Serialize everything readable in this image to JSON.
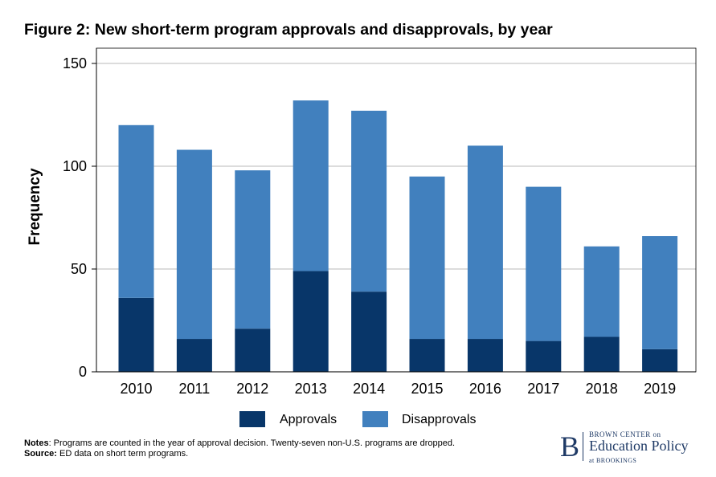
{
  "chart_data": {
    "type": "bar",
    "stacked": true,
    "title": "Figure 2: New short-term program approvals and disapprovals, by year",
    "xlabel": "",
    "ylabel": "Frequency",
    "ylim": [
      0,
      150
    ],
    "yticks": [
      0,
      50,
      100,
      150
    ],
    "categories": [
      "2010",
      "2011",
      "2012",
      "2013",
      "2014",
      "2015",
      "2016",
      "2017",
      "2018",
      "2019"
    ],
    "series": [
      {
        "name": "Approvals",
        "color": "#083669",
        "values": [
          36,
          16,
          21,
          49,
          39,
          16,
          16,
          15,
          17,
          11
        ]
      },
      {
        "name": "Disapprovals",
        "color": "#4180be",
        "values": [
          84,
          92,
          77,
          83,
          88,
          79,
          94,
          75,
          44,
          55
        ]
      }
    ],
    "grid": true,
    "legend_position": "bottom"
  },
  "notes": {
    "notes_label": "Notes",
    "notes_text": ": Programs are counted in the year of approval decision. Twenty-seven non-U.S. programs are dropped.",
    "source_label": "Source:",
    "source_text": " ED data on short term programs."
  },
  "logo": {
    "letter": "B",
    "line1": "BROWN CENTER on",
    "line2": "Education Policy",
    "line3": "at BROOKINGS"
  }
}
